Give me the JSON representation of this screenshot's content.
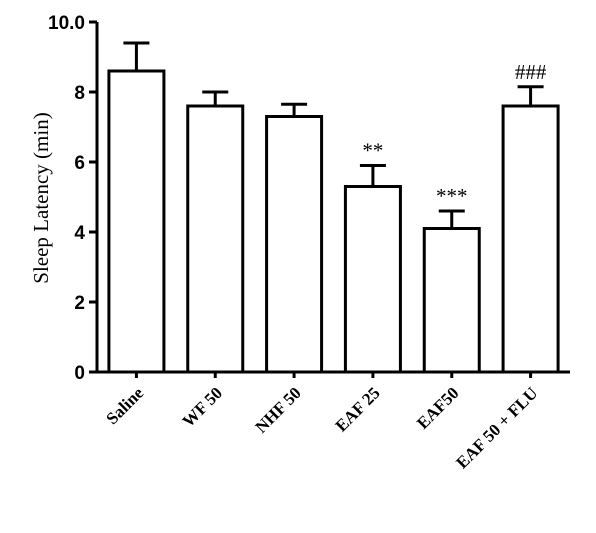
{
  "chart_data": {
    "type": "bar",
    "title": "",
    "xlabel": "",
    "ylabel": "Sleep Latency (min)",
    "ylim": [
      0,
      10
    ],
    "yticks": [
      "0",
      "2",
      "4",
      "6",
      "8",
      "10.0"
    ],
    "categories": [
      "Saline",
      "WF 50",
      "NHF 50",
      "EAF 25",
      "EAF50",
      "EAF 50 + FLU"
    ],
    "values": [
      8.6,
      7.6,
      7.3,
      5.3,
      4.1,
      7.6
    ],
    "errors": [
      0.8,
      0.4,
      0.35,
      0.6,
      0.5,
      0.55
    ],
    "annotations": [
      "",
      "",
      "",
      "**",
      "***",
      "###"
    ],
    "grid": false,
    "bar_fill": "#ffffff",
    "bar_stroke": "#000000"
  }
}
